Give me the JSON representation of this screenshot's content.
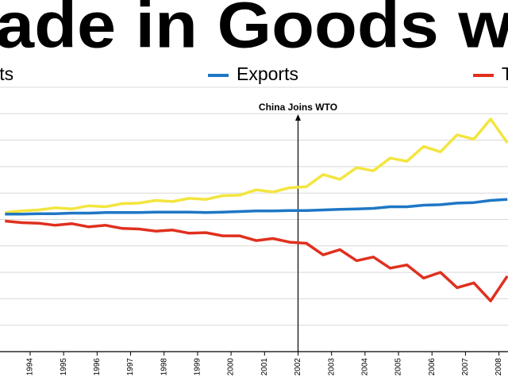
{
  "chart_data": {
    "type": "line",
    "title": "ade in Goods w",
    "annotation": {
      "text": "China Joins WTO",
      "x": 2002
    },
    "legend": "top",
    "grid": true,
    "x": [
      1993.25,
      1993.75,
      1994.25,
      1994.75,
      1995.25,
      1995.75,
      1996.25,
      1996.75,
      1997.25,
      1997.75,
      1998.25,
      1998.75,
      1999.25,
      1999.75,
      2000.25,
      2000.75,
      2001.25,
      2001.75,
      2002.25,
      2002.75,
      2003.25,
      2003.75,
      2004.25,
      2004.75,
      2005.25,
      2005.75,
      2006.25,
      2006.75,
      2007.25,
      2007.75,
      2008.25
    ],
    "xlim": [
      1993.1,
      2008.27
    ],
    "xticks": [
      1994,
      1995,
      1996,
      1997,
      1998,
      1999,
      2000,
      2001,
      2002,
      2003,
      2004,
      2005,
      2006,
      2007,
      2008
    ],
    "ylim": [
      -25,
      25
    ],
    "yticks": [
      -25,
      -20,
      -15,
      -10,
      -5,
      0,
      5,
      10,
      15,
      20,
      25
    ],
    "series": [
      {
        "name": "ports",
        "color": "#f3e53f",
        "values": [
          1.3,
          1.6,
          1.8,
          2.2,
          2.0,
          2.6,
          2.4,
          3.0,
          3.1,
          3.6,
          3.4,
          4.0,
          3.8,
          4.5,
          4.6,
          5.6,
          5.2,
          6.0,
          6.2,
          8.5,
          7.6,
          9.8,
          9.2,
          11.6,
          11.0,
          13.8,
          12.8,
          16.0,
          15.2,
          19.0,
          14.5
        ]
      },
      {
        "name": "Exports",
        "color": "#1f77c4",
        "values": [
          1.0,
          1.0,
          1.1,
          1.1,
          1.2,
          1.2,
          1.3,
          1.3,
          1.3,
          1.4,
          1.4,
          1.4,
          1.3,
          1.4,
          1.5,
          1.6,
          1.6,
          1.7,
          1.7,
          1.8,
          1.9,
          2.0,
          2.1,
          2.4,
          2.4,
          2.7,
          2.8,
          3.1,
          3.2,
          3.6,
          3.8
        ]
      },
      {
        "name": "T",
        "color": "#e0301e",
        "values": [
          -0.3,
          -0.6,
          -0.7,
          -1.1,
          -0.8,
          -1.4,
          -1.1,
          -1.7,
          -1.8,
          -2.2,
          -2.0,
          -2.6,
          -2.5,
          -3.1,
          -3.1,
          -4.0,
          -3.6,
          -4.3,
          -4.5,
          -6.7,
          -5.7,
          -7.8,
          -7.1,
          -9.2,
          -8.6,
          -11.1,
          -10.0,
          -12.9,
          -12.0,
          -15.4,
          -10.7
        ]
      }
    ]
  }
}
